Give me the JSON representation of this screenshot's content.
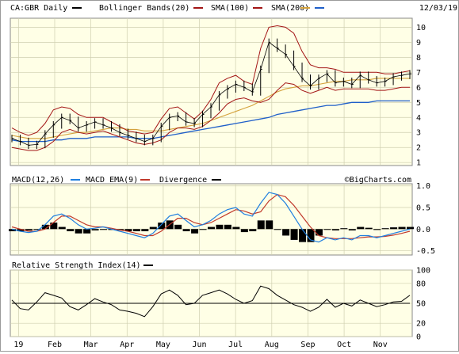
{
  "header": {
    "symbol_label": "CA:GBR Daily",
    "legend": [
      {
        "label": "Bollinger Bands(20)",
        "color": "#a31515"
      },
      {
        "label": "SMA(100)",
        "color": "#a31515"
      },
      {
        "label": "SMA(200)",
        "color": "#d4a23c"
      }
    ],
    "extra_swatch_color": "#1f5fc9",
    "date": "12/03/19"
  },
  "watermark": "©BigCharts.com",
  "colors": {
    "plot_bg": "#ffffe6",
    "grid": "#cfcfb0",
    "price": "#000000",
    "boll": "#a31515",
    "sma100": "#d4a23c",
    "sma200": "#1f5fc9",
    "macd": "#1f7fe0",
    "macd_ema": "#c0392b",
    "divergence": "#000000"
  },
  "chart_data": [
    {
      "type": "ohlc",
      "name": "price",
      "yticks": [
        1,
        2,
        3,
        4,
        5,
        6,
        7,
        8,
        9,
        10
      ],
      "ylim": [
        0.8,
        10.6
      ],
      "months": [
        "19",
        "Feb",
        "Mar",
        "Apr",
        "May",
        "Jun",
        "Jul",
        "Aug",
        "Sep",
        "Oct",
        "Nov"
      ],
      "x": [
        0,
        5,
        10,
        15,
        20,
        25,
        30,
        35,
        40,
        45,
        50,
        55,
        60,
        65,
        70,
        75,
        80,
        85,
        90,
        95,
        100,
        105,
        110,
        115,
        120,
        125,
        130,
        135,
        140,
        145,
        150,
        155,
        160,
        165,
        170,
        175,
        180,
        185,
        190,
        195,
        200,
        205,
        210,
        215,
        220,
        225,
        230,
        235,
        240
      ],
      "close": [
        2.6,
        2.4,
        2.15,
        2.2,
        2.9,
        3.5,
        4.0,
        3.8,
        3.3,
        3.5,
        3.7,
        3.5,
        3.3,
        3.0,
        2.8,
        2.6,
        2.4,
        2.6,
        3.4,
        4.0,
        4.1,
        3.7,
        3.6,
        4.2,
        4.7,
        5.5,
        5.9,
        6.2,
        6.0,
        5.7,
        7.2,
        9.0,
        8.6,
        8.2,
        7.4,
        6.6,
        6.1,
        6.6,
        6.9,
        6.3,
        6.4,
        6.2,
        6.8,
        6.5,
        6.3,
        6.4,
        6.7,
        6.8,
        6.9
      ],
      "bollinger_upper": [
        3.3,
        3.0,
        2.8,
        3.0,
        3.6,
        4.5,
        4.7,
        4.6,
        4.2,
        4.0,
        4.0,
        4.0,
        3.7,
        3.4,
        3.1,
        3.0,
        2.9,
        3.0,
        3.9,
        4.6,
        4.7,
        4.3,
        3.9,
        4.4,
        5.2,
        6.3,
        6.6,
        6.8,
        6.4,
        6.2,
        8.6,
        10.0,
        10.1,
        10.0,
        9.6,
        8.4,
        7.5,
        7.3,
        7.3,
        7.2,
        7.0,
        7.0,
        7.0,
        7.0,
        7.0,
        6.9,
        6.9,
        7.0,
        7.1
      ],
      "bollinger_lower": [
        2.0,
        1.9,
        1.8,
        1.8,
        2.0,
        2.4,
        3.0,
        3.2,
        3.0,
        2.9,
        3.0,
        3.1,
        2.9,
        2.7,
        2.5,
        2.3,
        2.2,
        2.3,
        2.5,
        3.0,
        3.3,
        3.3,
        3.2,
        3.4,
        3.8,
        4.3,
        4.9,
        5.2,
        5.3,
        5.1,
        5.0,
        5.2,
        5.8,
        6.3,
        6.2,
        5.8,
        5.6,
        5.8,
        6.0,
        5.8,
        5.9,
        5.9,
        5.9,
        5.9,
        5.8,
        5.8,
        5.9,
        6.0,
        6.0
      ],
      "sma100": [
        2.8,
        2.7,
        2.6,
        2.6,
        2.6,
        2.7,
        2.8,
        2.9,
        3.0,
        3.0,
        3.1,
        3.2,
        3.3,
        3.3,
        3.2,
        3.2,
        3.1,
        3.1,
        3.1,
        3.2,
        3.3,
        3.4,
        3.5,
        3.6,
        3.8,
        4.0,
        4.2,
        4.4,
        4.6,
        4.8,
        5.1,
        5.4,
        5.7,
        5.9,
        6.0,
        6.1,
        6.1,
        6.2,
        6.3,
        6.4,
        6.4,
        6.5,
        6.5,
        6.5,
        6.6,
        6.6,
        6.6,
        6.6,
        6.6
      ],
      "sma200": [
        2.5,
        2.4,
        2.4,
        2.4,
        2.4,
        2.5,
        2.5,
        2.6,
        2.6,
        2.6,
        2.7,
        2.7,
        2.7,
        2.7,
        2.7,
        2.6,
        2.6,
        2.6,
        2.7,
        2.8,
        2.9,
        3.0,
        3.1,
        3.2,
        3.3,
        3.4,
        3.5,
        3.6,
        3.7,
        3.8,
        3.9,
        4.0,
        4.2,
        4.3,
        4.4,
        4.5,
        4.6,
        4.7,
        4.8,
        4.8,
        4.9,
        5.0,
        5.0,
        5.0,
        5.1,
        5.1,
        5.1,
        5.1,
        5.1
      ]
    },
    {
      "type": "line",
      "name": "macd_panel",
      "legend": [
        {
          "label": "MACD(12,26)",
          "color": "#1f7fe0"
        },
        {
          "label": "MACD EMA(9)",
          "color": "#c0392b"
        },
        {
          "label": "Divergence",
          "color": "#000000"
        }
      ],
      "yticks": [
        1.0,
        0.5,
        0.0,
        -0.5
      ],
      "ytick_labels": [
        "1.0",
        "0.5",
        "0.0",
        "-0.5"
      ],
      "ylim": [
        -0.6,
        1.05
      ],
      "x": [
        0,
        5,
        10,
        15,
        20,
        25,
        30,
        35,
        40,
        45,
        50,
        55,
        60,
        65,
        70,
        75,
        80,
        85,
        90,
        95,
        100,
        105,
        110,
        115,
        120,
        125,
        130,
        135,
        140,
        145,
        150,
        155,
        160,
        165,
        170,
        175,
        180,
        185,
        190,
        195,
        200,
        205,
        210,
        215,
        220,
        225,
        230,
        235,
        240
      ],
      "macd": [
        0.0,
        -0.05,
        -0.08,
        -0.05,
        0.1,
        0.3,
        0.35,
        0.25,
        0.1,
        0.0,
        0.02,
        0.05,
        0.0,
        -0.05,
        -0.1,
        -0.15,
        -0.2,
        -0.1,
        0.1,
        0.3,
        0.35,
        0.2,
        0.05,
        0.1,
        0.2,
        0.35,
        0.45,
        0.5,
        0.35,
        0.3,
        0.6,
        0.85,
        0.8,
        0.6,
        0.3,
        0.0,
        -0.25,
        -0.3,
        -0.2,
        -0.25,
        -0.2,
        -0.25,
        -0.15,
        -0.15,
        -0.2,
        -0.15,
        -0.1,
        -0.05,
        0.0
      ],
      "ema": [
        0.05,
        0.0,
        -0.05,
        -0.05,
        0.0,
        0.15,
        0.3,
        0.3,
        0.2,
        0.1,
        0.05,
        0.05,
        0.02,
        -0.02,
        -0.05,
        -0.1,
        -0.15,
        -0.15,
        -0.05,
        0.1,
        0.25,
        0.25,
        0.15,
        0.1,
        0.15,
        0.25,
        0.35,
        0.45,
        0.42,
        0.35,
        0.4,
        0.65,
        0.8,
        0.75,
        0.55,
        0.3,
        0.05,
        -0.15,
        -0.2,
        -0.22,
        -0.22,
        -0.22,
        -0.2,
        -0.18,
        -0.18,
        -0.17,
        -0.14,
        -0.1,
        -0.05
      ],
      "divergence": [
        -0.05,
        -0.05,
        -0.03,
        0.0,
        0.1,
        0.15,
        0.05,
        -0.05,
        -0.1,
        -0.1,
        -0.03,
        0.0,
        -0.02,
        -0.03,
        -0.05,
        -0.05,
        -0.05,
        0.05,
        0.15,
        0.2,
        0.1,
        -0.05,
        -0.1,
        0.0,
        0.05,
        0.1,
        0.1,
        0.05,
        -0.07,
        -0.05,
        0.2,
        0.2,
        0.0,
        -0.15,
        -0.25,
        -0.3,
        -0.3,
        -0.15,
        0.0,
        -0.03,
        0.02,
        -0.03,
        0.05,
        0.03,
        -0.02,
        0.02,
        0.04,
        0.05,
        0.05
      ]
    },
    {
      "type": "line",
      "name": "rsi_panel",
      "legend": [
        {
          "label": "Relative Strength Index(14)",
          "color": "#000000"
        }
      ],
      "yticks": [
        100,
        80,
        50,
        20,
        0
      ],
      "ytick_labels": [
        "100",
        "80",
        "50",
        "20",
        "0"
      ],
      "reference_line": 50,
      "ylim": [
        0,
        100
      ],
      "x": [
        0,
        5,
        10,
        15,
        20,
        25,
        30,
        35,
        40,
        45,
        50,
        55,
        60,
        65,
        70,
        75,
        80,
        85,
        90,
        95,
        100,
        105,
        110,
        115,
        120,
        125,
        130,
        135,
        140,
        145,
        150,
        155,
        160,
        165,
        170,
        175,
        180,
        185,
        190,
        195,
        200,
        205,
        210,
        215,
        220,
        225,
        230,
        235,
        240
      ],
      "rsi": [
        55,
        42,
        40,
        52,
        66,
        62,
        58,
        45,
        40,
        48,
        57,
        52,
        48,
        40,
        38,
        35,
        30,
        45,
        64,
        70,
        62,
        48,
        50,
        62,
        66,
        70,
        64,
        56,
        50,
        54,
        76,
        72,
        62,
        55,
        48,
        44,
        38,
        44,
        56,
        44,
        50,
        46,
        55,
        50,
        45,
        48,
        52,
        53,
        62
      ]
    }
  ]
}
